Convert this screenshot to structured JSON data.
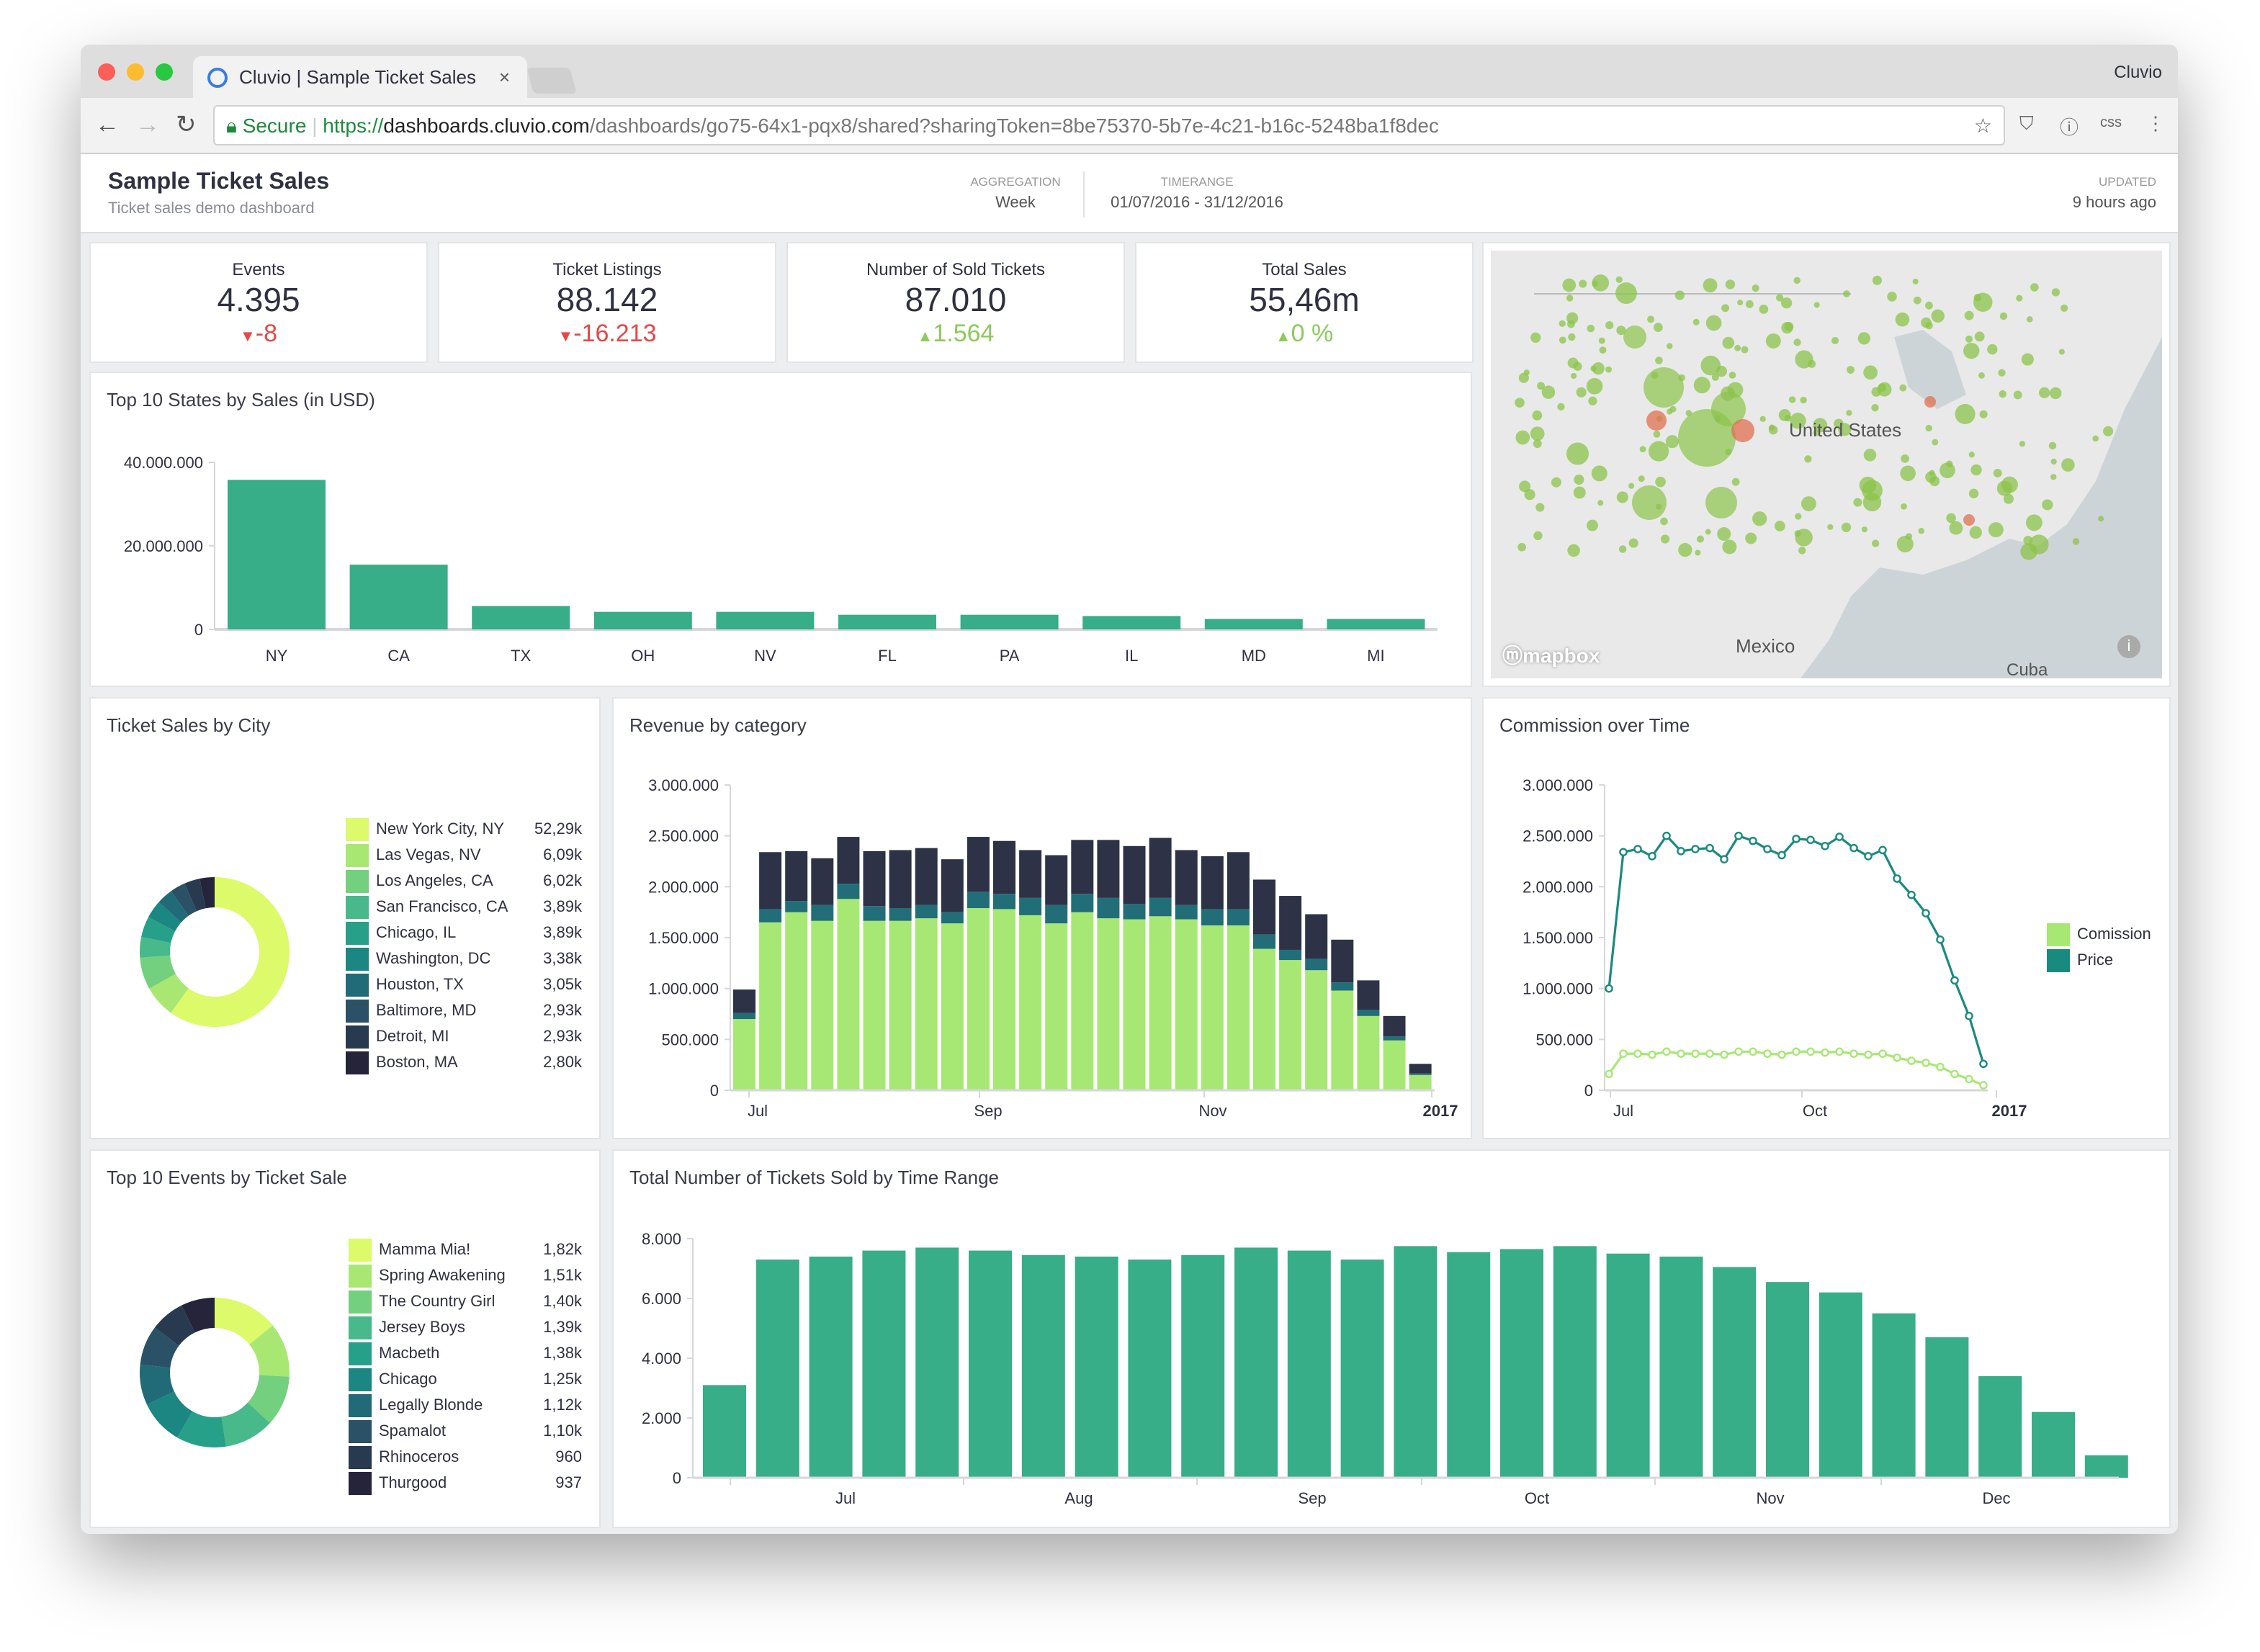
{
  "browser": {
    "tab_title": "Cluvio | Sample Ticket Sales",
    "profile": "Cluvio",
    "secure_label": "Secure",
    "url_scheme": "https://",
    "url_host": "dashboards.cluvio.com",
    "url_path": "/dashboards/go75-64x1-pqx8/shared?sharingToken=8be75370-5b7e-4c21-b16c-5248ba1f8dec",
    "ext_css": "css"
  },
  "header": {
    "title": "Sample Ticket Sales",
    "subtitle": "Ticket sales demo dashboard",
    "aggregation_label": "AGGREGATION",
    "aggregation_value": "Week",
    "timerange_label": "TIMERANGE",
    "timerange_value": "01/07/2016 - 31/12/2016",
    "updated_label": "UPDATED",
    "updated_value": "9 hours ago"
  },
  "kpis": [
    {
      "label": "Events",
      "value": "4.395",
      "delta": "-8",
      "trend": "down"
    },
    {
      "label": "Ticket Listings",
      "value": "88.142",
      "delta": "-16.213",
      "trend": "down"
    },
    {
      "label": "Number of Sold Tickets",
      "value": "87.010",
      "delta": "1.564",
      "trend": "up"
    },
    {
      "label": "Total Sales",
      "value": "55,46m",
      "delta": "0 %",
      "trend": "up"
    }
  ],
  "map": {
    "labels": {
      "us": "United States",
      "mexico": "Mexico",
      "cuba": "Cuba"
    },
    "logo": "mapbox",
    "bubble_color": "#8bc34a",
    "hot_color": "#e07050"
  },
  "colors": {
    "accent": "#37ad88",
    "palette": [
      "#dcfa6a",
      "#a8e872",
      "#72d07f",
      "#47b98a",
      "#27a08a",
      "#1b8682",
      "#216b78",
      "#2a5166",
      "#283a50",
      "#25243a"
    ],
    "rev": [
      "#a6e873",
      "#216e78",
      "#2d3246"
    ],
    "price": "#1b8a7e",
    "commission": "#a6e873"
  },
  "chart_data": [
    {
      "title": "Top 10 States by Sales (in USD)",
      "type": "bar",
      "categories": [
        "NY",
        "CA",
        "TX",
        "OH",
        "NV",
        "FL",
        "PA",
        "IL",
        "MD",
        "MI"
      ],
      "values": [
        35800000,
        15500000,
        5600000,
        4200000,
        4200000,
        3500000,
        3500000,
        3200000,
        2500000,
        2500000
      ],
      "ylim": [
        0,
        40000000
      ],
      "yticks": [
        "0",
        "20.000.000",
        "40.000.000"
      ]
    },
    {
      "title": "Ticket Sales by City",
      "type": "pie",
      "labels": [
        "New York City, NY",
        "Las Vegas, NV",
        "Los Angeles, CA",
        "San Francisco, CA",
        "Chicago, IL",
        "Washington, DC",
        "Houston, TX",
        "Baltimore, MD",
        "Detroit, MI",
        "Boston, MA"
      ],
      "values": [
        52290,
        6090,
        6020,
        3890,
        3890,
        3380,
        3050,
        2930,
        2930,
        2800
      ],
      "display": [
        "52,29k",
        "6,09k",
        "6,02k",
        "3,89k",
        "3,89k",
        "3,38k",
        "3,05k",
        "2,93k",
        "2,93k",
        "2,80k"
      ]
    },
    {
      "title": "Revenue by category",
      "type": "bar",
      "stacked": true,
      "ylim": [
        0,
        3000000
      ],
      "yticks": [
        "0",
        "500.000",
        "1.000.000",
        "1.500.000",
        "2.000.000",
        "2.500.000",
        "3.000.000"
      ],
      "xticks": [
        "Jul",
        "Sep",
        "Nov",
        "2017"
      ],
      "series": [
        {
          "values": [
            700000,
            1650000,
            1750000,
            1665000,
            1880000,
            1665000,
            1665000,
            1690000,
            1640000,
            1790000,
            1780000,
            1720000,
            1640000,
            1750000,
            1690000,
            1680000,
            1710000,
            1680000,
            1620000,
            1620000,
            1390000,
            1280000,
            1180000,
            980000,
            730000,
            490000,
            150000
          ]
        },
        {
          "values": [
            60000,
            130000,
            110000,
            155000,
            150000,
            145000,
            125000,
            130000,
            110000,
            160000,
            150000,
            170000,
            180000,
            180000,
            200000,
            150000,
            180000,
            140000,
            160000,
            160000,
            140000,
            100000,
            110000,
            80000,
            60000,
            40000,
            15000
          ]
        },
        {
          "values": [
            230000,
            560000,
            490000,
            460000,
            460000,
            540000,
            570000,
            560000,
            520000,
            540000,
            520000,
            470000,
            490000,
            530000,
            570000,
            570000,
            590000,
            540000,
            520000,
            560000,
            540000,
            530000,
            440000,
            420000,
            290000,
            200000,
            95000
          ]
        }
      ]
    },
    {
      "title": "Commission over Time",
      "type": "line",
      "ylim": [
        0,
        3000000
      ],
      "yticks": [
        "0",
        "500.000",
        "1.000.000",
        "1.500.000",
        "2.000.000",
        "2.500.000",
        "3.000.000"
      ],
      "xticks": [
        "Jul",
        "Oct",
        "2017"
      ],
      "series": [
        {
          "name": "Comission",
          "values": [
            160000,
            360000,
            360000,
            350000,
            380000,
            360000,
            360000,
            360000,
            350000,
            380000,
            380000,
            360000,
            350000,
            380000,
            380000,
            370000,
            380000,
            360000,
            350000,
            360000,
            320000,
            290000,
            270000,
            230000,
            160000,
            110000,
            50000
          ]
        },
        {
          "name": "Price",
          "values": [
            1000000,
            2340000,
            2370000,
            2300000,
            2500000,
            2350000,
            2370000,
            2380000,
            2270000,
            2500000,
            2450000,
            2370000,
            2310000,
            2470000,
            2460000,
            2400000,
            2490000,
            2380000,
            2300000,
            2360000,
            2080000,
            1920000,
            1740000,
            1480000,
            1080000,
            730000,
            260000
          ]
        }
      ]
    },
    {
      "title": "Top 10 Events by Ticket Sale",
      "type": "pie",
      "labels": [
        "Mamma Mia!",
        "Spring Awakening",
        "The Country Girl",
        "Jersey Boys",
        "Macbeth",
        "Chicago",
        "Legally Blonde",
        "Spamalot",
        "Rhinoceros",
        "Thurgood"
      ],
      "values": [
        1820,
        1510,
        1400,
        1390,
        1380,
        1250,
        1120,
        1100,
        960,
        937
      ],
      "display": [
        "1,82k",
        "1,51k",
        "1,40k",
        "1,39k",
        "1,38k",
        "1,25k",
        "1,12k",
        "1,10k",
        "960",
        "937"
      ]
    },
    {
      "title": "Total Number of Tickets Sold by Time Range",
      "type": "bar",
      "ylim": [
        0,
        8000
      ],
      "yticks": [
        "0",
        "2.000",
        "4.000",
        "6.000",
        "8.000"
      ],
      "xticks": [
        "Jul",
        "Aug",
        "Sep",
        "Oct",
        "Nov",
        "Dec"
      ],
      "values": [
        3100,
        7300,
        7400,
        7600,
        7700,
        7600,
        7450,
        7400,
        7300,
        7450,
        7700,
        7600,
        7300,
        7750,
        7550,
        7650,
        7750,
        7500,
        7400,
        7050,
        6550,
        6200,
        5500,
        4700,
        3400,
        2200,
        750
      ]
    }
  ]
}
